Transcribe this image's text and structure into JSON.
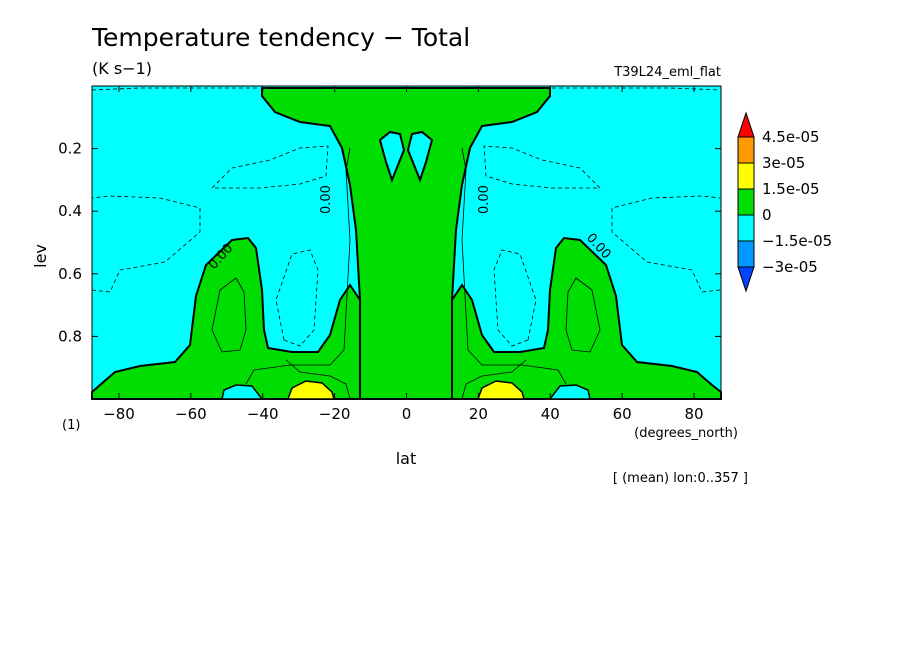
{
  "chart_data": {
    "type": "contour",
    "title": "Temperature tendency − Total",
    "units": "(K s−1)",
    "experiment": "T39L24_eml_flat",
    "xlabel": "lat",
    "x_units": "(degrees_north)",
    "ylabel": "lev",
    "y_units": "(1)",
    "footnote": "[ (mean) lon:0..357 ]",
    "xlim": [
      -87.5,
      87.5
    ],
    "ylim": [
      1.0,
      0.0
    ],
    "x_ticks": [
      -80,
      -60,
      -40,
      -20,
      0,
      20,
      40,
      60,
      80
    ],
    "x_tick_labels": [
      "−80",
      "−60",
      "−40",
      "−20",
      "0",
      "20",
      "40",
      "60",
      "80"
    ],
    "y_ticks": [
      0.2,
      0.4,
      0.6,
      0.8
    ],
    "y_tick_labels": [
      "0.2",
      "0.4",
      "0.6",
      "0.8"
    ],
    "contour_label": "0.00",
    "colorbar": {
      "levels": [
        "4.5e-05",
        "3e-05",
        "1.5e-05",
        "0",
        "−1.5e-05",
        "−3e-05"
      ],
      "colors": [
        "#ff0000",
        "#ff9900",
        "#ffff00",
        "#00dd00",
        "#00ffff",
        "#0099ff",
        "#0044ff"
      ]
    },
    "regions": [
      {
        "sign": "positive",
        "desc": "central column",
        "lat": [
          -20,
          20
        ],
        "lev": [
          0.0,
          1.0
        ]
      },
      {
        "sign": "positive",
        "desc": "southern mid-latitude lobe",
        "lat": [
          -70,
          -45
        ],
        "lev": [
          0.45,
          1.0
        ]
      },
      {
        "sign": "positive",
        "desc": "northern mid-latitude lobe",
        "lat": [
          45,
          70
        ],
        "lev": [
          0.45,
          1.0
        ]
      },
      {
        "sign": "negative",
        "desc": "elsewhere",
        "value_range": [
          -1.5e-05,
          0
        ]
      },
      {
        "sign": "positive-high",
        "desc": "near-surface maxima",
        "lat": [
          -30,
          -20
        ],
        "lev": [
          0.92,
          1.0
        ]
      },
      {
        "sign": "positive-high",
        "desc": "near-surface maxima",
        "lat": [
          20,
          35
        ],
        "lev": [
          0.92,
          1.0
        ]
      }
    ]
  }
}
